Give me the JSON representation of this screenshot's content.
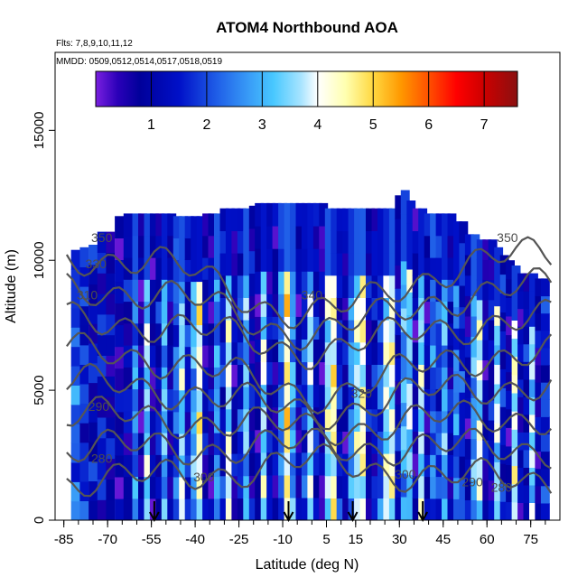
{
  "chart_data": {
    "type": "heatmap",
    "title": "ATOM4 Northbound AOA",
    "subtitle_flights": "Flts: 7,8,9,10,11,12",
    "subtitle_dates": "MMDD: 0509,0512,0514,0517,0518,0519",
    "xlabel": "Latitude (deg N)",
    "ylabel": "Altitude (m)",
    "xlim": [
      -88,
      85
    ],
    "ylim": [
      0,
      18000
    ],
    "x_ticks": [
      -85,
      -70,
      -55,
      -40,
      -25,
      -10,
      5,
      15,
      30,
      45,
      60,
      75
    ],
    "x_tick_labels": [
      "-85",
      "-70",
      "-55",
      "-40",
      "-25",
      "-10",
      "5",
      "15",
      "30",
      "45",
      "60",
      "75"
    ],
    "y_ticks": [
      0,
      5000,
      10000,
      15000
    ],
    "y_tick_labels": [
      "0",
      "5000",
      "10000",
      "15000"
    ],
    "colorbar": {
      "range": [
        0,
        7.6
      ],
      "ticks": [
        1,
        2,
        3,
        4,
        5,
        6,
        7
      ],
      "tick_labels": [
        "1",
        "2",
        "3",
        "4",
        "5",
        "6",
        "7"
      ],
      "stops": [
        {
          "v": 0.0,
          "color": "#7a1fe0"
        },
        {
          "v": 0.4,
          "color": "#2a00b8"
        },
        {
          "v": 0.8,
          "color": "#00009a"
        },
        {
          "v": 1.5,
          "color": "#0010c8"
        },
        {
          "v": 2.2,
          "color": "#2060e8"
        },
        {
          "v": 2.8,
          "color": "#3aa0f8"
        },
        {
          "v": 3.2,
          "color": "#48c8ff"
        },
        {
          "v": 3.7,
          "color": "#a8e4ff"
        },
        {
          "v": 4.0,
          "color": "#ffffff"
        },
        {
          "v": 4.5,
          "color": "#ffffb0"
        },
        {
          "v": 5.0,
          "color": "#ffd840"
        },
        {
          "v": 5.5,
          "color": "#ff9800"
        },
        {
          "v": 6.0,
          "color": "#ff5000"
        },
        {
          "v": 6.5,
          "color": "#ff0000"
        },
        {
          "v": 7.0,
          "color": "#cc0000"
        },
        {
          "v": 7.6,
          "color": "#8a1010"
        }
      ]
    },
    "profile_latitudes": [
      -81,
      -78,
      -75,
      -72,
      -69,
      -66,
      -63,
      -60,
      -58,
      -56,
      -54,
      -52,
      -50,
      -48,
      -46,
      -44,
      -42,
      -40,
      -38,
      -36,
      -34,
      -32,
      -30,
      -28,
      -26,
      -24,
      -22,
      -20,
      -18,
      -16,
      -14,
      -12,
      -10,
      -8,
      -6,
      -4,
      -2,
      0,
      2,
      4,
      6,
      8,
      10,
      12,
      14,
      16,
      18,
      20,
      22,
      24,
      26,
      28,
      30,
      32,
      34,
      36,
      38,
      40,
      42,
      44,
      46,
      48,
      50,
      52,
      54,
      56,
      58,
      60,
      62,
      64,
      66,
      68,
      70,
      72,
      74,
      76,
      78,
      80
    ],
    "profile_tops_m": [
      10400,
      10500,
      10600,
      11100,
      11100,
      11700,
      11800,
      11800,
      11800,
      11800,
      11800,
      11800,
      11800,
      11800,
      11700,
      11700,
      11700,
      11700,
      11700,
      11800,
      11800,
      11800,
      12000,
      12000,
      12000,
      12000,
      12000,
      12100,
      12200,
      12200,
      12200,
      12200,
      12200,
      12200,
      12200,
      12200,
      12200,
      12200,
      12200,
      12200,
      12000,
      12000,
      12000,
      12000,
      12000,
      12000,
      12000,
      12000,
      12000,
      12000,
      12000,
      12000,
      12500,
      12700,
      12300,
      12000,
      12000,
      11800,
      11800,
      11800,
      11800,
      11800,
      11500,
      11500,
      11000,
      11000,
      10800,
      10800,
      10800,
      10500,
      10200,
      10000,
      9800,
      9500,
      9500,
      9500,
      9300,
      9300
    ],
    "profile_aoa": [
      2.2,
      1.6,
      1.2,
      1.4,
      1.0,
      0.9,
      1.1,
      2.5,
      0.6,
      3.4,
      0.8,
      1.2,
      3.0,
      1.0,
      2.1,
      3.5,
      1.4,
      2.9,
      4.2,
      1.1,
      0.8,
      2.6,
      1.4,
      3.8,
      0.9,
      1.6,
      3.1,
      1.0,
      0.8,
      3.6,
      1.2,
      0.9,
      2.4,
      4.6,
      2.8,
      0.9,
      1.8,
      3.5,
      1.3,
      0.8,
      3.7,
      4.4,
      1.5,
      0.9,
      2.5,
      3.7,
      4.2,
      1.1,
      1.4,
      2.0,
      3.8,
      4.0,
      1.2,
      2.9,
      3.4,
      0.9,
      3.6,
      1.0,
      2.2,
      1.8,
      2.9,
      1.2,
      2.4,
      1.6,
      1.0,
      2.8,
      3.8,
      0.9,
      1.2,
      3.6,
      1.4,
      0.9,
      3.9,
      1.1,
      1.3,
      3.5,
      0.9,
      1.6
    ],
    "contour_labels": [
      {
        "text": "350",
        "lat": -72,
        "alt": 10700
      },
      {
        "text": "330",
        "lat": -74,
        "alt": 9700
      },
      {
        "text": "310",
        "lat": -77,
        "alt": 8500
      },
      {
        "text": "340",
        "lat": 0,
        "alt": 8500
      },
      {
        "text": "290",
        "lat": -73,
        "alt": 4200
      },
      {
        "text": "280",
        "lat": -72,
        "alt": 2200
      },
      {
        "text": "300",
        "lat": -37,
        "alt": 1500
      },
      {
        "text": "320",
        "lat": 17,
        "alt": 4700
      },
      {
        "text": "300",
        "lat": 32,
        "alt": 1600
      },
      {
        "text": "290",
        "lat": 55,
        "alt": 1300
      },
      {
        "text": "280",
        "lat": 65,
        "alt": 1100
      },
      {
        "text": "350",
        "lat": 67,
        "alt": 10700
      }
    ],
    "contour_levels": [
      280,
      290,
      300,
      310,
      320,
      330,
      340,
      350
    ],
    "arrow_latitudes": [
      -54,
      -8,
      14,
      38
    ]
  }
}
